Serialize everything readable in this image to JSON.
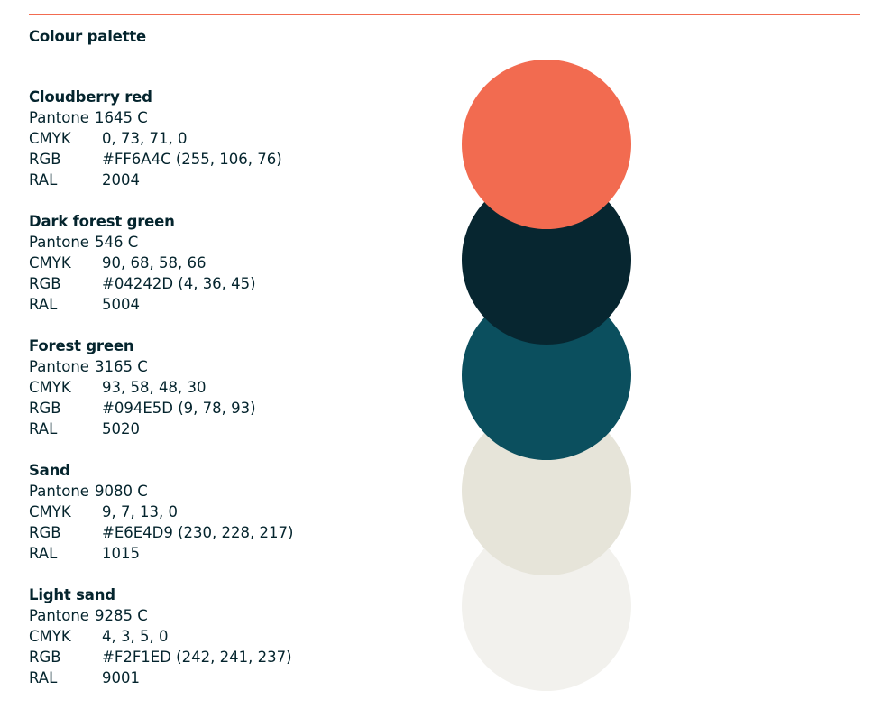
{
  "header": {
    "title": "Colour palette"
  },
  "colours": [
    {
      "name": "Cloudberry red",
      "hex": "#F26B50",
      "specs": {
        "pantone_label": "Pantone",
        "pantone": "1645 C",
        "cmyk_label": "CMYK",
        "cmyk": "0, 73, 71, 0",
        "rgb_label": "RGB",
        "rgb": "#FF6A4C (255, 106, 76)",
        "ral_label": "RAL",
        "ral": "2004"
      }
    },
    {
      "name": "Dark forest green",
      "hex": "#072630",
      "specs": {
        "pantone_label": "Pantone",
        "pantone": "546 C",
        "cmyk_label": "CMYK",
        "cmyk": "90, 68, 58, 66",
        "rgb_label": "RGB",
        "rgb": "#04242D (4, 36, 45)",
        "ral_label": "RAL",
        "ral": "5004"
      }
    },
    {
      "name": "Forest green",
      "hex": "#0B4F5E",
      "specs": {
        "pantone_label": "Pantone",
        "pantone": "3165 C",
        "cmyk_label": "CMYK",
        "cmyk": "93, 58, 48, 30",
        "rgb_label": "RGB",
        "rgb": "#094E5D (9, 78, 93)",
        "ral_label": "RAL",
        "ral": "5020"
      }
    },
    {
      "name": "Sand",
      "hex": "#E6E4D9",
      "specs": {
        "pantone_label": "Pantone",
        "pantone": "9080 C",
        "cmyk_label": "CMYK",
        "cmyk": "9, 7, 13, 0",
        "rgb_label": "RGB",
        "rgb": "#E6E4D9 (230, 228, 217)",
        "ral_label": "RAL",
        "ral": "1015"
      }
    },
    {
      "name": "Light sand",
      "hex": "#F2F1ED",
      "specs": {
        "pantone_label": "Pantone",
        "pantone": "9285 C",
        "cmyk_label": "CMYK",
        "cmyk": "4, 3, 5, 0",
        "rgb_label": "RGB",
        "rgb": "#F2F1ED (242, 241, 237)",
        "ral_label": "RAL",
        "ral": "9001"
      }
    }
  ],
  "theme": {
    "accent_rule": "#F26B50",
    "text": "#04242D"
  }
}
